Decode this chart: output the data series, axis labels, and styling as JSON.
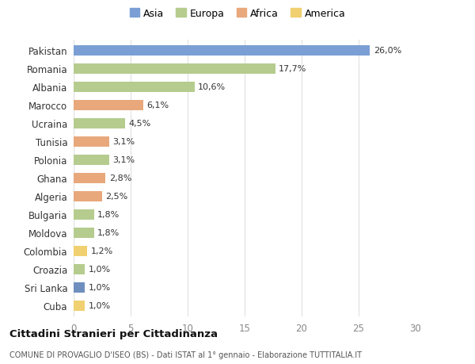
{
  "countries": [
    "Pakistan",
    "Romania",
    "Albania",
    "Marocco",
    "Ucraina",
    "Tunisia",
    "Polonia",
    "Ghana",
    "Algeria",
    "Bulgaria",
    "Moldova",
    "Colombia",
    "Croazia",
    "Sri Lanka",
    "Cuba"
  ],
  "values": [
    26.0,
    17.7,
    10.6,
    6.1,
    4.5,
    3.1,
    3.1,
    2.8,
    2.5,
    1.8,
    1.8,
    1.2,
    1.0,
    1.0,
    1.0
  ],
  "labels": [
    "26,0%",
    "17,7%",
    "10,6%",
    "6,1%",
    "4,5%",
    "3,1%",
    "3,1%",
    "2,8%",
    "2,5%",
    "1,8%",
    "1,8%",
    "1,2%",
    "1,0%",
    "1,0%",
    "1,0%"
  ],
  "colors": [
    "#7b9fd4",
    "#b5cc8e",
    "#b5cc8e",
    "#e8a87c",
    "#b5cc8e",
    "#e8a87c",
    "#b5cc8e",
    "#e8a87c",
    "#e8a87c",
    "#b5cc8e",
    "#b5cc8e",
    "#f0d070",
    "#b5cc8e",
    "#6f8fbe",
    "#f0d070"
  ],
  "continents": [
    "Asia",
    "Europa",
    "Africa",
    "America"
  ],
  "legend_colors": [
    "#7b9fd4",
    "#b5cc8e",
    "#e8a87c",
    "#f0d070"
  ],
  "title": "Cittadini Stranieri per Cittadinanza",
  "subtitle": "COMUNE DI PROVAGLIO D'ISEO (BS) - Dati ISTAT al 1° gennaio - Elaborazione TUTTITALIA.IT",
  "xlim": [
    0,
    30
  ],
  "xticks": [
    0,
    5,
    10,
    15,
    20,
    25,
    30
  ],
  "background_color": "#ffffff",
  "grid_color": "#e0e0e0"
}
